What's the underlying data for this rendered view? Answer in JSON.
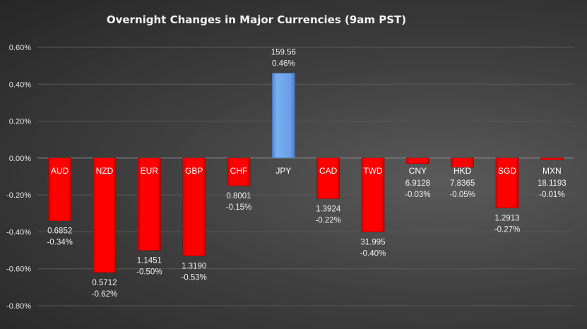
{
  "chart_data": {
    "type": "bar",
    "title": "Overnight Changes in Major Currencies (9am PST)",
    "xlabel": "",
    "ylabel": "",
    "ylim": [
      -0.8,
      0.6
    ],
    "yticks": [
      "0.60%",
      "0.40%",
      "0.20%",
      "0.00%",
      "-0.20%",
      "-0.40%",
      "-0.60%",
      "-0.80%"
    ],
    "ytick_values": [
      0.6,
      0.4,
      0.2,
      0.0,
      -0.2,
      -0.4,
      -0.6,
      -0.8
    ],
    "grid": true,
    "categories": [
      "AUD",
      "NZD",
      "EUR",
      "GBP",
      "CHF",
      "JPY",
      "CAD",
      "TWD",
      "CNY",
      "HKD",
      "SGD",
      "MXN"
    ],
    "values": [
      -0.34,
      -0.62,
      -0.5,
      -0.53,
      -0.15,
      0.46,
      -0.22,
      -0.4,
      -0.03,
      -0.05,
      -0.27,
      -0.01
    ],
    "rates": [
      "0.6852",
      "0.5712",
      "1.1451",
      "1.3190",
      "0.8001",
      "159.56",
      "1.3924",
      "31.995",
      "6.9128",
      "7.8365",
      "1.2913",
      "18.1193"
    ],
    "pct_labels": [
      "-0.34%",
      "-0.62%",
      "-0.50%",
      "-0.53%",
      "-0.15%",
      "0.46%",
      "-0.22%",
      "-0.40%",
      "-0.03%",
      "-0.05%",
      "-0.27%",
      "-0.01%"
    ],
    "colors": {
      "negative": "#ff0000",
      "positive": "#6fa3e8",
      "background": "#3a3a3a",
      "grid": "#5a5a5a"
    }
  }
}
